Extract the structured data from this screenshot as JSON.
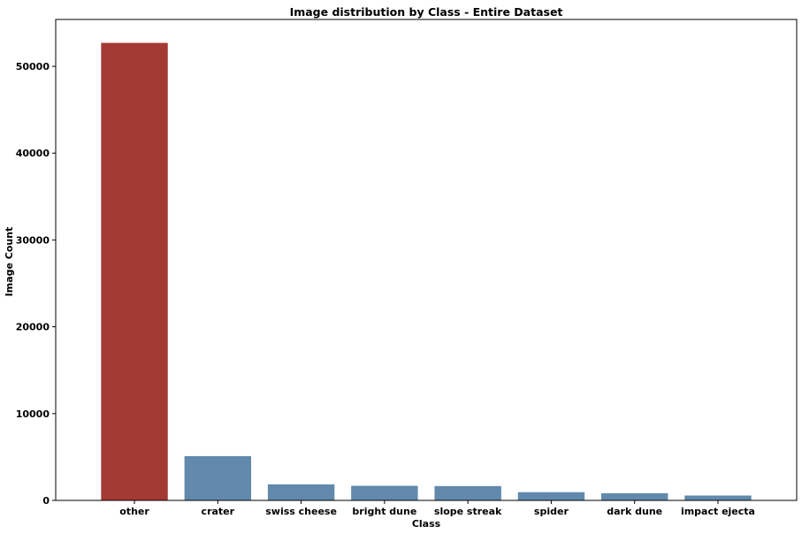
{
  "chart_data": {
    "type": "bar",
    "title": "Image distribution by Class - Entire Dataset",
    "xlabel": "Class",
    "ylabel": "Image Count",
    "categories": [
      "other",
      "crater",
      "swiss cheese",
      "bright dune",
      "slope streak",
      "spider",
      "dark dune",
      "impact ejecta"
    ],
    "values": [
      52700,
      5100,
      1850,
      1680,
      1650,
      950,
      830,
      560
    ],
    "ylim": [
      0,
      55400
    ],
    "yticks": [
      0,
      10000,
      20000,
      30000,
      40000,
      50000
    ],
    "grid": false,
    "colors": {
      "highlight": "#a33a33",
      "default": "#6189ab"
    },
    "highlight_category": "other"
  }
}
